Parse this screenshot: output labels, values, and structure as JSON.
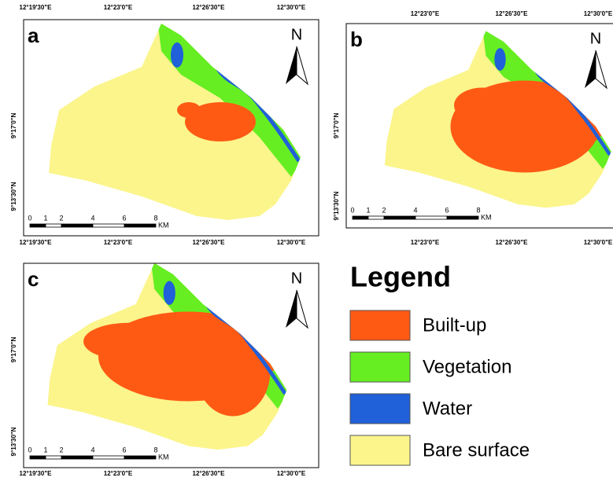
{
  "panels": [
    {
      "label": "a",
      "north": "N",
      "top_ticks": [
        "12°19'30\"E",
        "12°23'0\"E",
        "12°26'30\"E",
        "12°30'0\"E"
      ],
      "bottom_ticks": [
        "12°19'30\"E",
        "12°23'0\"E",
        "12°26'30\"E",
        "12°30'0\"E"
      ],
      "left_ticks": [
        "9°17'0\"N",
        "9°13'30\"N"
      ],
      "scale_ticks": [
        "0",
        "1",
        "2",
        "4",
        "6",
        "8"
      ],
      "scale_unit": "KM"
    },
    {
      "label": "b",
      "north": "N",
      "top_ticks": [
        "12°23'0\"E",
        "12°26'30\"E",
        "12°30'0\"E"
      ],
      "bottom_ticks": [
        "12°23'0\"E",
        "12°26'30\"E",
        "12°30'0\"E"
      ],
      "left_ticks": [
        "9°17'0\"N",
        "9°13'30\"N"
      ],
      "scale_ticks": [
        "0",
        "1",
        "2",
        "4",
        "6",
        "8"
      ],
      "scale_unit": "KM"
    },
    {
      "label": "c",
      "north": "N",
      "top_ticks": [],
      "bottom_ticks": [
        "12°19'30\"E",
        "12°23'0\"E",
        "12°26'30\"E",
        "12°30'0\"E"
      ],
      "left_ticks": [
        "9°17'0\"N",
        "9°13'30\"N"
      ],
      "scale_ticks": [
        "0",
        "1",
        "2",
        "4",
        "6",
        "8"
      ],
      "scale_unit": "KM"
    }
  ],
  "legend": {
    "title": "Legend",
    "items": [
      {
        "label": "Built-up",
        "color": "#ff5a14"
      },
      {
        "label": "Vegetation",
        "color": "#66ee22"
      },
      {
        "label": "Water",
        "color": "#2060d8"
      },
      {
        "label": "Bare surface",
        "color": "#fbf58c"
      }
    ]
  }
}
